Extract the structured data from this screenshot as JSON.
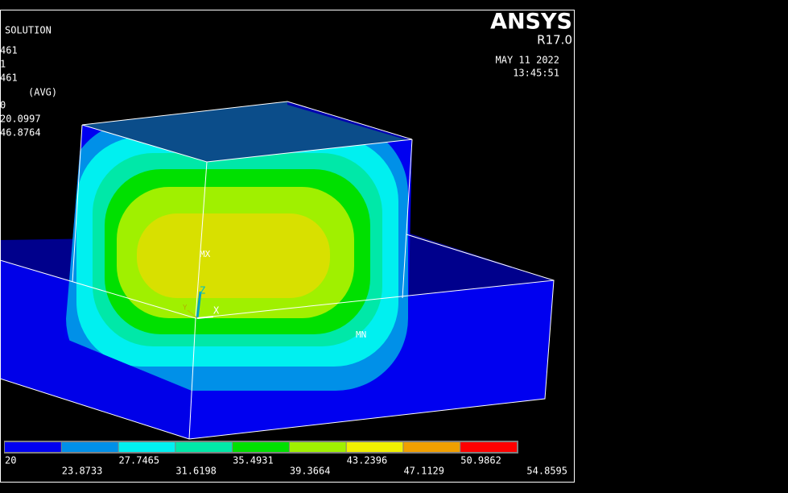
{
  "info": {
    "lines": [
      "SOLUTION",
      "461",
      "1",
      "461",
      "(AVG)",
      "0",
      "20.0997",
      "46.8764"
    ]
  },
  "brand": {
    "name": "ANSYS",
    "version": "R17.0"
  },
  "timestamp": {
    "date": "MAY 11 2022",
    "time": "13:45:51"
  },
  "labels": {
    "max": "MX",
    "min": "MN",
    "axis_z": "Z",
    "axis_x": "X",
    "axis_y": "Y"
  },
  "legend": {
    "colors": [
      "#0000f0",
      "#0090e8",
      "#00f0f0",
      "#00e8a8",
      "#00e000",
      "#a0f000",
      "#f0f000",
      "#f0a000",
      "#ff0000"
    ],
    "labels": [
      "20",
      "23.8733",
      "27.7465",
      "31.6198",
      "35.4931",
      "39.3664",
      "43.2396",
      "47.1129",
      "50.9862",
      "54.8595"
    ]
  }
}
